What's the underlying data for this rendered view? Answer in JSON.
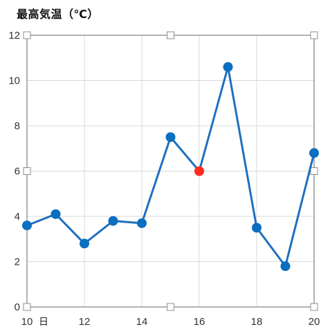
{
  "chart_data": {
    "type": "line",
    "title": "最高気温（℃）",
    "x_unit_label": "日",
    "x": [
      10,
      11,
      12,
      13,
      14,
      15,
      16,
      17,
      18,
      19,
      20
    ],
    "series": [
      {
        "values": [
          3.6,
          4.1,
          2.8,
          3.8,
          3.7,
          7.5,
          6.0,
          10.6,
          3.5,
          1.8,
          6.8
        ]
      }
    ],
    "highlight": {
      "x": 16,
      "y": 6.0,
      "color": "#ff2a1a"
    },
    "xlim": [
      10,
      20
    ],
    "ylim": [
      0,
      12
    ],
    "xticks": [
      10,
      12,
      14,
      16,
      18,
      20
    ],
    "yticks": [
      0,
      2,
      4,
      6,
      8,
      10,
      12
    ],
    "vertical_grid_every": 2,
    "grid": true,
    "line_color": "#1f6fbf",
    "marker_color": "#0a6fc0",
    "grid_color": "#d9d9d9",
    "axis_color": "#7f7f7f"
  }
}
